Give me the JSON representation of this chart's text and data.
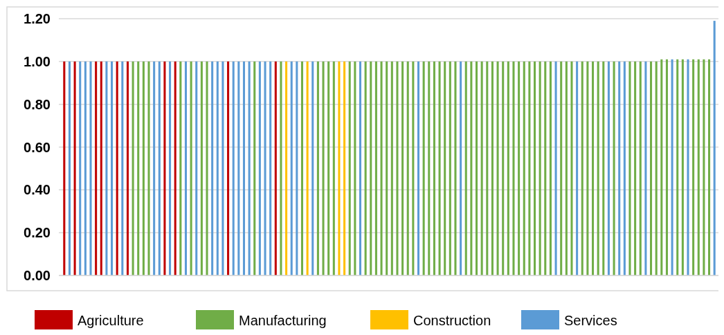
{
  "chart_data": {
    "type": "bar",
    "categories": [
      null,
      null,
      null,
      null,
      null,
      null,
      null,
      null,
      null,
      null,
      null,
      null,
      null,
      null,
      null,
      null,
      null,
      null,
      null,
      null,
      null,
      null,
      null,
      null,
      null,
      null,
      null,
      null,
      null,
      null,
      null,
      null,
      null,
      null,
      null,
      null,
      null,
      null,
      null,
      null,
      null,
      null,
      null,
      null,
      null,
      null,
      null,
      null,
      null,
      null,
      null,
      null,
      null,
      null,
      null,
      null,
      null,
      null,
      null,
      null,
      null,
      null,
      null,
      null,
      null,
      null,
      null,
      null,
      null,
      null,
      null,
      null,
      null,
      null,
      null,
      null,
      null,
      null,
      null,
      null,
      null,
      null,
      null,
      null,
      null,
      null,
      null,
      null,
      null,
      null,
      null,
      null,
      null,
      null,
      null,
      null,
      null,
      null,
      null,
      null,
      null,
      null,
      null,
      null,
      null,
      null,
      null,
      null,
      null,
      null,
      null,
      null,
      null,
      null,
      null,
      null,
      null,
      null,
      null,
      null,
      null,
      null,
      null,
      null
    ],
    "series": [
      {
        "name": "Agriculture",
        "color": "#c00000",
        "values": [
          1,
          null,
          1,
          null,
          null,
          null,
          1,
          1,
          null,
          null,
          1,
          null,
          1,
          null,
          null,
          null,
          null,
          null,
          null,
          1,
          null,
          1,
          null,
          null,
          null,
          null,
          null,
          null,
          null,
          null,
          null,
          1,
          null,
          null,
          null,
          null,
          null,
          null,
          null,
          null,
          1,
          null,
          null,
          null,
          null,
          null,
          null,
          null,
          null,
          null,
          null,
          null,
          null,
          null,
          null,
          null,
          null,
          null,
          null,
          null,
          null,
          null,
          null,
          null,
          null,
          null,
          null,
          null,
          null,
          null,
          null,
          null,
          null,
          null,
          null,
          null,
          null,
          null,
          null,
          null,
          null,
          null,
          null,
          null,
          null,
          null,
          null,
          null,
          null,
          null,
          null,
          null,
          null,
          null,
          null,
          null,
          null,
          null,
          null,
          null,
          null,
          null,
          null,
          null,
          null,
          null,
          null,
          null,
          null,
          null,
          null,
          null,
          null,
          null,
          null,
          null,
          null,
          null,
          null,
          null,
          null,
          null,
          null,
          null
        ]
      },
      {
        "name": "Manufacturing",
        "color": "#70ad47",
        "values": [
          null,
          null,
          null,
          null,
          null,
          null,
          null,
          null,
          null,
          null,
          null,
          null,
          null,
          1,
          1,
          1,
          1,
          null,
          null,
          null,
          null,
          null,
          1,
          null,
          1,
          null,
          1,
          1,
          null,
          null,
          null,
          null,
          null,
          null,
          null,
          null,
          1,
          null,
          null,
          null,
          null,
          1,
          null,
          null,
          null,
          1,
          null,
          null,
          1,
          1,
          1,
          1,
          null,
          null,
          1,
          1,
          null,
          1,
          1,
          1,
          1,
          1,
          1,
          1,
          1,
          1,
          1,
          null,
          1,
          1,
          1,
          1,
          1,
          1,
          1,
          null,
          1,
          1,
          1,
          1,
          1,
          1,
          1,
          1,
          1,
          1,
          1,
          1,
          1,
          1,
          1,
          1,
          1,
          null,
          1,
          1,
          1,
          null,
          1,
          1,
          1,
          1,
          1,
          null,
          1,
          null,
          null,
          1,
          1,
          1,
          null,
          1,
          1,
          1.01,
          1.01,
          null,
          1.01,
          1.01,
          null,
          1.01,
          1.01,
          1.01,
          1.01,
          null
        ]
      },
      {
        "name": "Construction",
        "color": "#ffc000",
        "values": [
          null,
          null,
          null,
          null,
          null,
          null,
          null,
          null,
          null,
          null,
          null,
          null,
          null,
          null,
          null,
          null,
          null,
          null,
          null,
          null,
          null,
          null,
          null,
          null,
          null,
          null,
          null,
          null,
          null,
          null,
          null,
          null,
          null,
          null,
          null,
          null,
          null,
          null,
          null,
          null,
          null,
          null,
          1,
          null,
          null,
          null,
          1,
          null,
          null,
          null,
          null,
          null,
          1,
          1,
          null,
          null,
          null,
          null,
          null,
          null,
          null,
          null,
          null,
          null,
          null,
          null,
          null,
          null,
          null,
          null,
          null,
          null,
          null,
          null,
          null,
          null,
          null,
          null,
          null,
          null,
          null,
          null,
          null,
          null,
          null,
          null,
          null,
          null,
          null,
          null,
          null,
          null,
          null,
          null,
          null,
          null,
          null,
          null,
          null,
          null,
          null,
          null,
          null,
          null,
          null,
          null,
          null,
          null,
          null,
          null,
          null,
          null,
          null,
          null,
          null,
          null,
          null,
          null,
          null,
          null,
          null,
          null,
          null,
          null
        ]
      },
      {
        "name": "Services",
        "color": "#5b9bd5",
        "values": [
          null,
          1,
          null,
          1,
          1,
          1,
          null,
          null,
          1,
          1,
          null,
          1,
          null,
          null,
          null,
          null,
          null,
          1,
          1,
          null,
          1,
          null,
          null,
          1,
          null,
          1,
          null,
          null,
          1,
          1,
          1,
          null,
          1,
          1,
          1,
          1,
          null,
          1,
          1,
          1,
          null,
          null,
          null,
          1,
          1,
          null,
          null,
          1,
          null,
          null,
          null,
          null,
          null,
          null,
          null,
          null,
          1,
          null,
          null,
          null,
          null,
          null,
          null,
          null,
          null,
          null,
          null,
          1,
          null,
          null,
          null,
          null,
          null,
          null,
          null,
          1,
          null,
          null,
          null,
          null,
          null,
          null,
          null,
          null,
          null,
          null,
          null,
          null,
          null,
          null,
          null,
          null,
          null,
          1,
          null,
          null,
          null,
          1,
          null,
          null,
          null,
          null,
          null,
          1,
          null,
          1,
          1,
          null,
          null,
          null,
          1,
          null,
          null,
          null,
          null,
          1.01,
          null,
          null,
          1.01,
          null,
          null,
          null,
          null,
          1.19
        ]
      }
    ],
    "ylim": [
      0,
      1.2
    ],
    "yticks": [
      {
        "value": 0,
        "label": "0.00"
      },
      {
        "value": 0.2,
        "label": "0.20"
      },
      {
        "value": 0.4,
        "label": "0.40"
      },
      {
        "value": 0.6,
        "label": "0.60"
      },
      {
        "value": 0.8,
        "label": "0.80"
      },
      {
        "value": 1,
        "label": "1.00"
      },
      {
        "value": 1.2,
        "label": "1.20"
      }
    ],
    "grid": "y",
    "legend": "bottom",
    "tick_labels": "y"
  }
}
